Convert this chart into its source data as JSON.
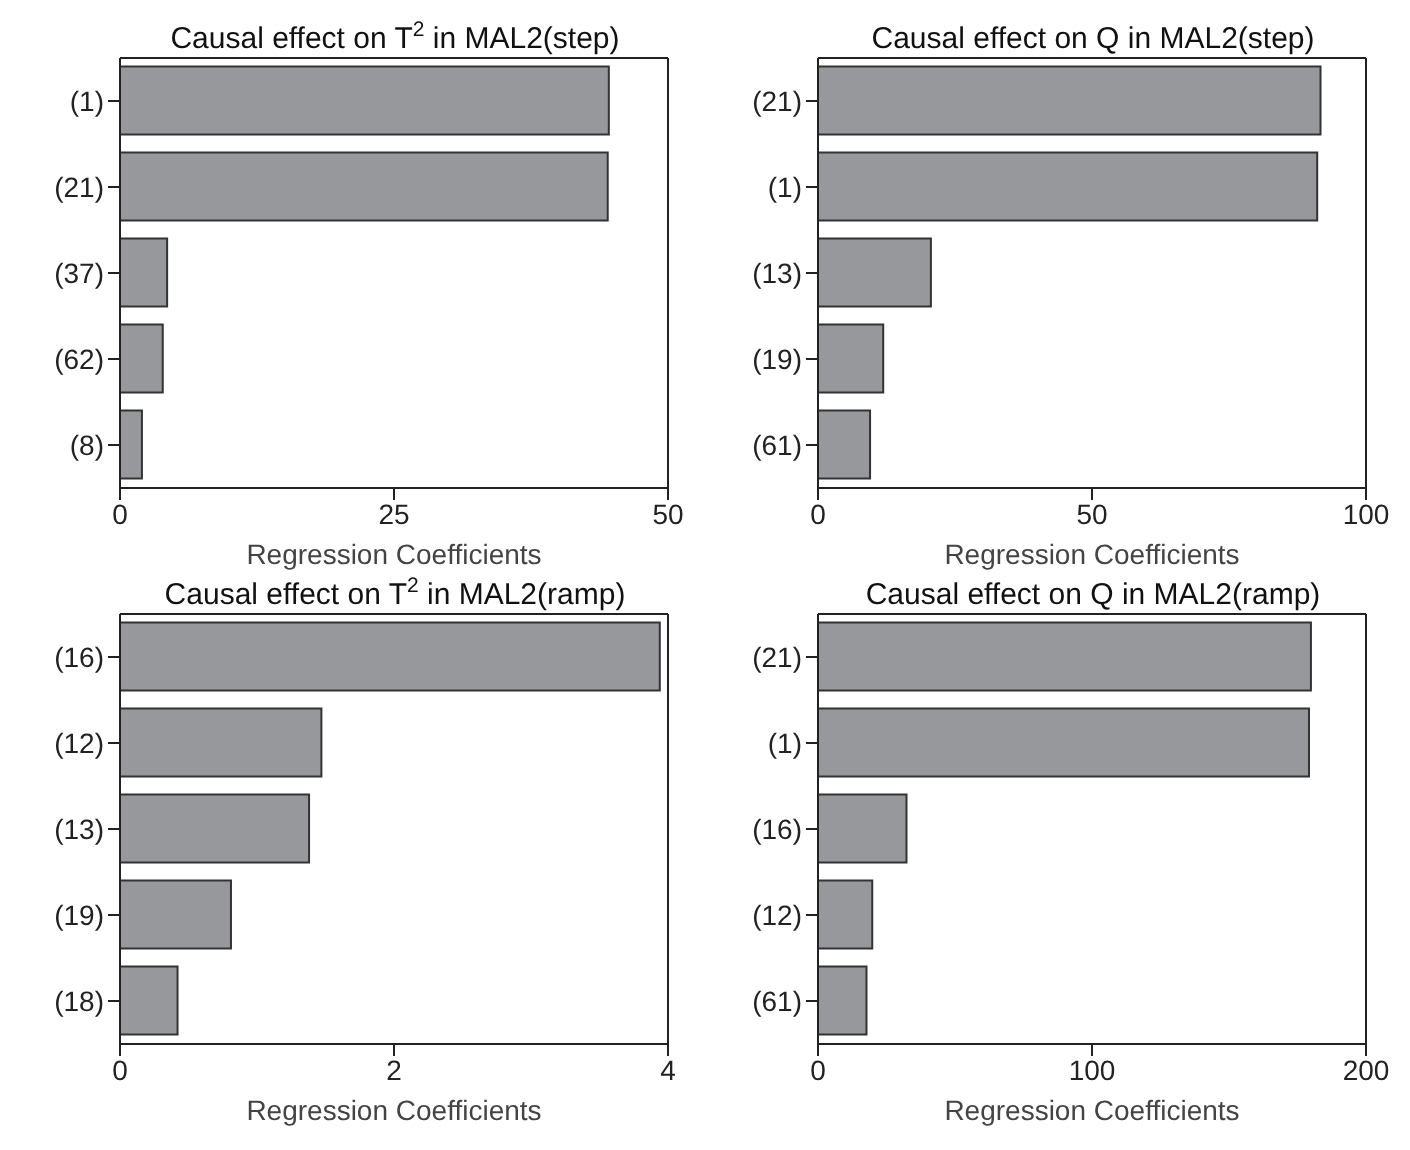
{
  "chart_data": [
    {
      "type": "bar",
      "orientation": "horizontal",
      "title": "Causal effect on T$^{2}$ in MAL2(step)",
      "xlabel": "Regression Coefficients",
      "categories": [
        "(1)",
        "(21)",
        "(37)",
        "(62)",
        "(8)"
      ],
      "values": [
        44.6,
        44.5,
        4.3,
        3.9,
        2.0
      ],
      "color": "#97989c",
      "xlim": [
        0,
        50
      ],
      "xticks": [
        0,
        25,
        50
      ]
    },
    {
      "type": "bar",
      "orientation": "horizontal",
      "title": "Causal effect on Q in MAL2(step)",
      "xlabel": "Regression Coefficients",
      "categories": [
        "(21)",
        "(1)",
        "(13)",
        "(19)",
        "(61)"
      ],
      "values": [
        91.7,
        91.1,
        20.6,
        11.9,
        9.5
      ],
      "color": "#97989c",
      "xlim": [
        0,
        100
      ],
      "xticks": [
        0,
        50,
        100
      ]
    },
    {
      "type": "bar",
      "orientation": "horizontal",
      "title": "Causal effect on T$^{2}$ in MAL2(ramp)",
      "xlabel": "Regression Coefficients",
      "categories": [
        "(16)",
        "(12)",
        "(13)",
        "(19)",
        "(18)"
      ],
      "values": [
        3.94,
        1.47,
        1.38,
        0.81,
        0.42
      ],
      "color": "#97989c",
      "xlim": [
        0,
        4
      ],
      "xticks": [
        0,
        2,
        4
      ]
    },
    {
      "type": "bar",
      "orientation": "horizontal",
      "title": "Causal effect on Q in MAL2(ramp)",
      "xlabel": "Regression Coefficients",
      "categories": [
        "(21)",
        "(1)",
        "(16)",
        "(12)",
        "(61)"
      ],
      "values": [
        179.9,
        179.2,
        32.3,
        19.8,
        17.7
      ],
      "color": "#97989c",
      "xlim": [
        0,
        200
      ],
      "xticks": [
        0,
        100,
        200
      ]
    }
  ]
}
